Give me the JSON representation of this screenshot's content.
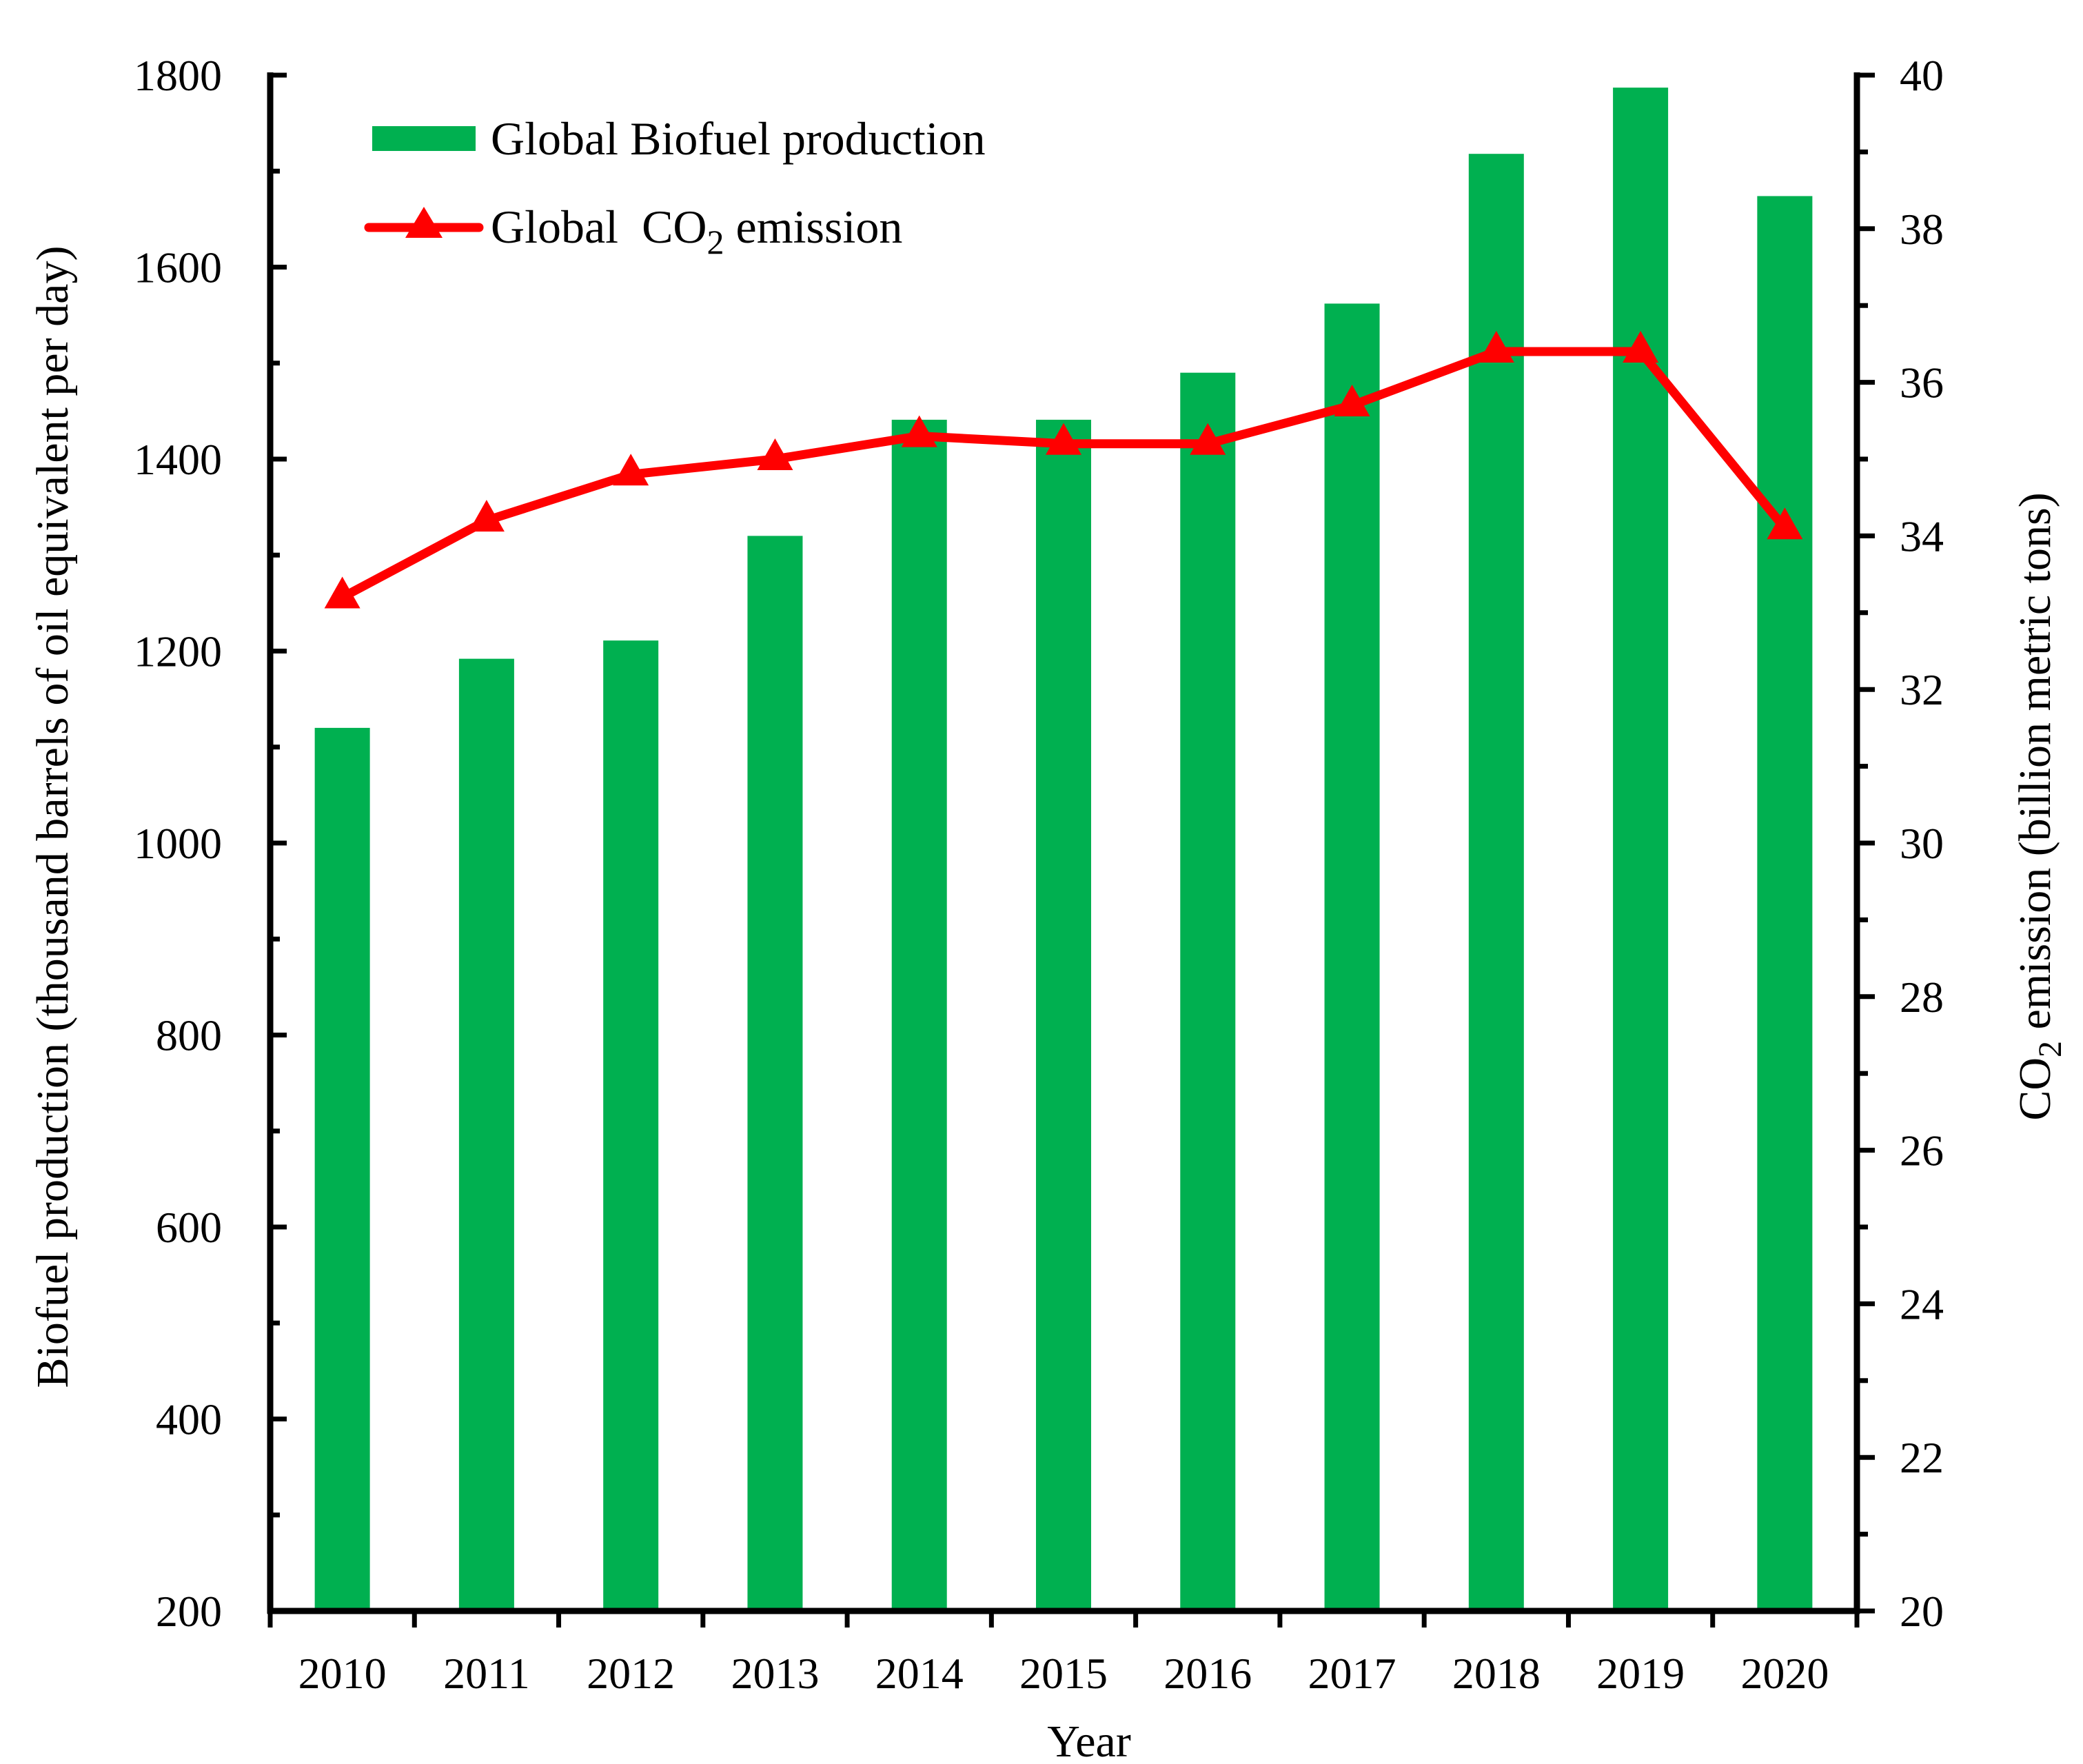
{
  "chart_data": {
    "type": "bar+line",
    "categories": [
      "2010",
      "2011",
      "2012",
      "2013",
      "2014",
      "2015",
      "2016",
      "2017",
      "2018",
      "2019",
      "2020"
    ],
    "series": [
      {
        "name": "Global Biofuel production",
        "type": "bar",
        "axis": "left",
        "values": [
          1120,
          1192,
          1211,
          1320,
          1441,
          1441,
          1490,
          1562,
          1718,
          1787,
          1674
        ]
      },
      {
        "name_prefix": "Global  CO",
        "name_sub": "2",
        "name_suffix": " emission",
        "type": "line",
        "marker": "triangle",
        "axis": "right",
        "values": [
          33.2,
          34.2,
          34.8,
          35.0,
          35.3,
          35.2,
          35.2,
          35.7,
          36.4,
          36.4,
          34.1
        ]
      }
    ],
    "xlabel": "Year",
    "ylabel_left": "Biofuel production (thousand barrels of oil equivalent per day)",
    "ylabel_right_prefix": "CO",
    "ylabel_right_sub": "2",
    "ylabel_right_suffix": " emission (billion metric tons)",
    "ylim_left": [
      200,
      1800
    ],
    "yticks_left": [
      "200",
      "400",
      "600",
      "800",
      "1000",
      "1200",
      "1400",
      "1600",
      "1800"
    ],
    "ylim_right": [
      20,
      40
    ],
    "yticks_right": [
      "20",
      "22",
      "24",
      "26",
      "28",
      "30",
      "32",
      "34",
      "36",
      "38",
      "40"
    ],
    "grid": false,
    "legend_position": "top-left"
  },
  "colors": {
    "bar": "#00b050",
    "line": "#ff0000"
  }
}
